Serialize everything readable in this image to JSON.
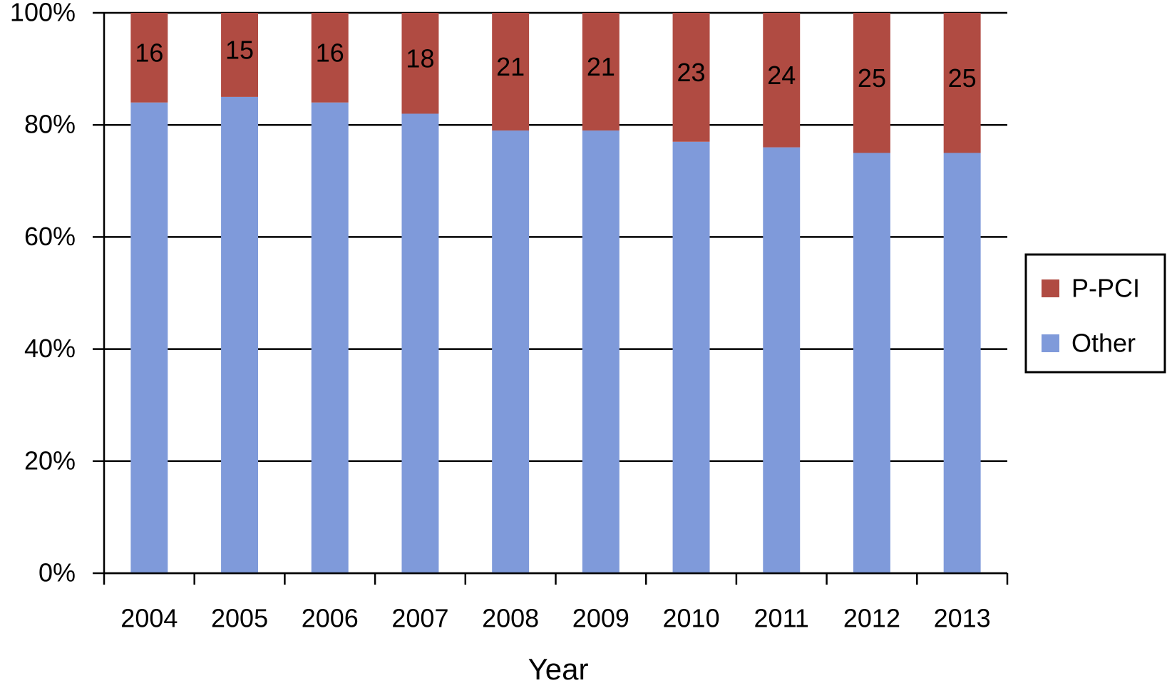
{
  "chart_data": {
    "type": "stacked_bar_100",
    "x_label": "Year",
    "categories": [
      "2004",
      "2005",
      "2006",
      "2007",
      "2008",
      "2009",
      "2010",
      "2011",
      "2012",
      "2013"
    ],
    "series": [
      {
        "name": "P-PCI",
        "color": "#b04b42",
        "values": [
          16,
          15,
          16,
          18,
          21,
          21,
          23,
          24,
          25,
          25
        ],
        "data_labels": true
      },
      {
        "name": "Other",
        "color": "#7f9ada",
        "values": [
          84,
          85,
          84,
          82,
          79,
          79,
          77,
          76,
          75,
          75
        ],
        "data_labels": false
      }
    ],
    "ylim": [
      0,
      100
    ],
    "yticks": [
      {
        "value": 0,
        "label": "0%"
      },
      {
        "value": 20,
        "label": "20%"
      },
      {
        "value": 40,
        "label": "40%"
      },
      {
        "value": 60,
        "label": "60%"
      },
      {
        "value": 80,
        "label": "80%"
      },
      {
        "value": 100,
        "label": "100%"
      }
    ],
    "grid": true,
    "legend": "right"
  }
}
